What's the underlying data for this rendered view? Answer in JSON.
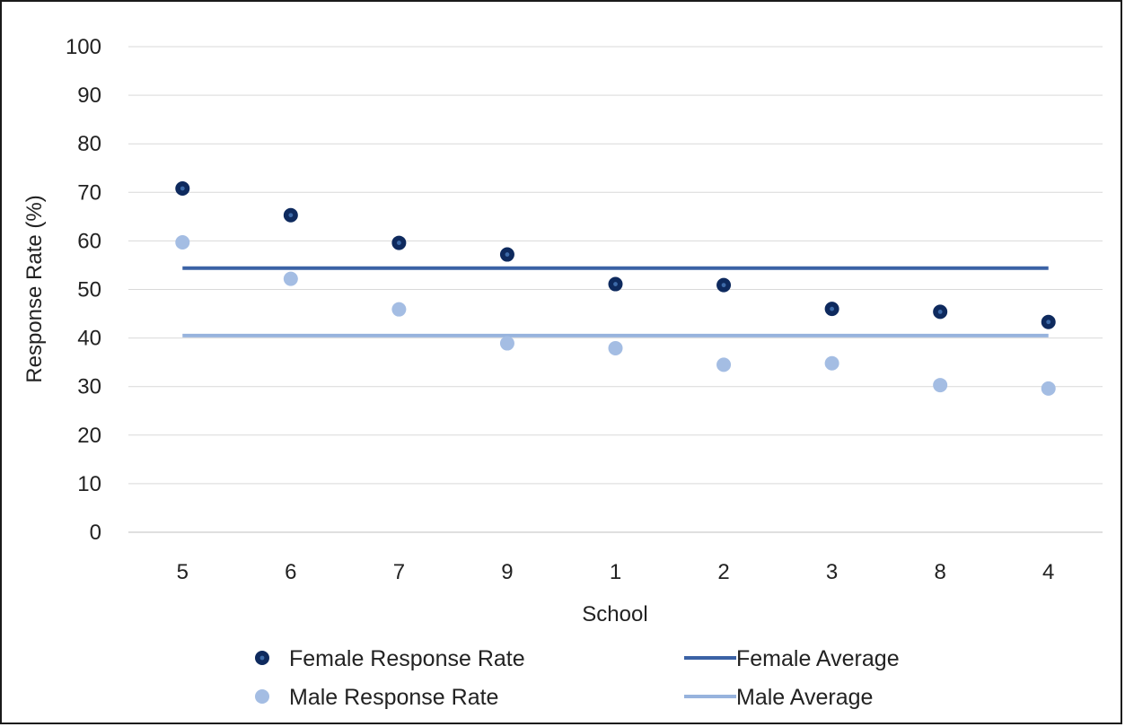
{
  "chart_data": {
    "type": "scatter",
    "title": "",
    "xlabel": "School",
    "ylabel": "Response Rate (%)",
    "categories": [
      "5",
      "6",
      "7",
      "9",
      "1",
      "2",
      "3",
      "8",
      "4"
    ],
    "ylim": [
      0,
      100
    ],
    "y_ticks": [
      "0",
      "10",
      "20",
      "30",
      "40",
      "50",
      "60",
      "70",
      "80",
      "90",
      "100"
    ],
    "grid": true,
    "legend_position": "bottom",
    "series": [
      {
        "name": "Female Response Rate",
        "kind": "scatter",
        "values": [
          70.8,
          65.3,
          59.6,
          57.2,
          51.1,
          50.9,
          46.0,
          45.4,
          43.3
        ],
        "color": "#0e2a5e"
      },
      {
        "name": "Male Response Rate",
        "kind": "scatter",
        "values": [
          59.7,
          52.2,
          45.9,
          38.9,
          37.9,
          34.5,
          34.8,
          30.3,
          29.6
        ],
        "color": "#a4bde3"
      },
      {
        "name": "Female Average",
        "kind": "line",
        "values": [
          54.4,
          54.4,
          54.4,
          54.4,
          54.4,
          54.4,
          54.4,
          54.4,
          54.4
        ],
        "color": "#3b62a5"
      },
      {
        "name": "Male Average",
        "kind": "line",
        "values": [
          40.5,
          40.5,
          40.5,
          40.5,
          40.5,
          40.5,
          40.5,
          40.5,
          40.5
        ],
        "color": "#97b3dd"
      }
    ]
  }
}
